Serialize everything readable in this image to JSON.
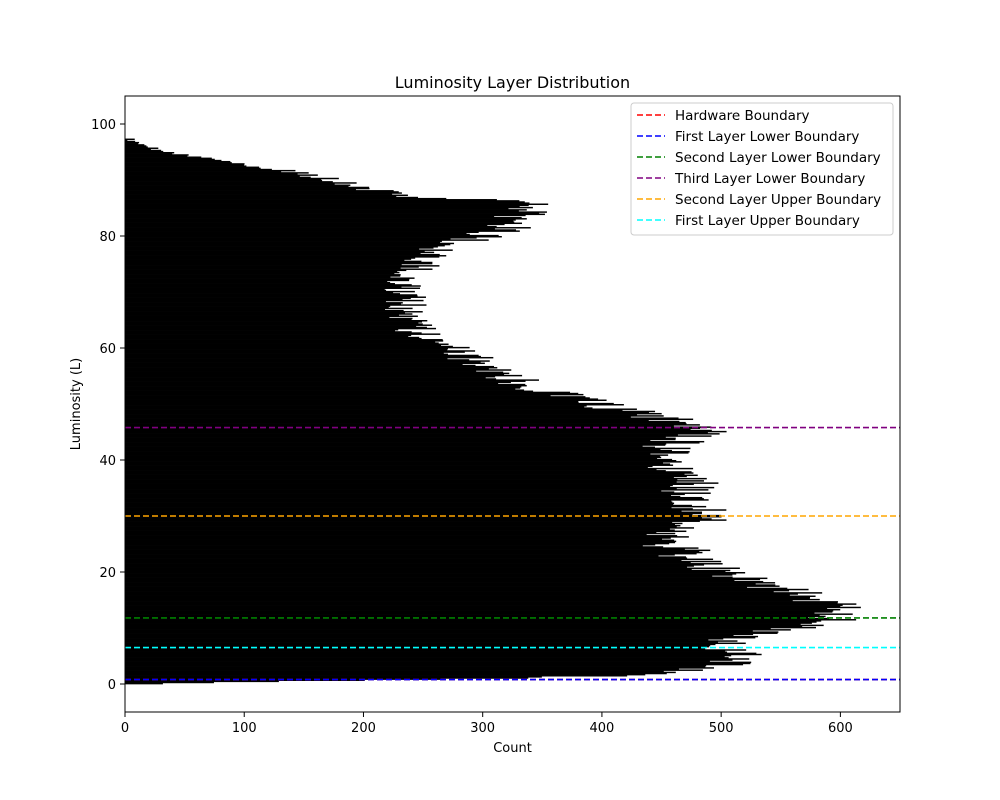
{
  "chart_data": {
    "type": "bar",
    "orientation": "horizontal",
    "title": "Luminosity Layer Distribution",
    "xlabel": "Count",
    "ylabel": "Luminosity (L)",
    "xlim": [
      0,
      650
    ],
    "ylim": [
      -5,
      105
    ],
    "xticks": [
      0,
      100,
      200,
      300,
      400,
      500,
      600
    ],
    "yticks": [
      0,
      20,
      40,
      60,
      80,
      100
    ],
    "grid": false,
    "legend_position": "top-right",
    "bar_color": "#000000",
    "bin_width": 0.2,
    "profile": {
      "L": [
        0,
        0.5,
        1,
        1.5,
        2,
        3,
        4,
        5,
        6,
        7,
        8,
        9,
        10,
        11,
        12,
        13,
        14,
        15,
        16,
        17,
        18,
        19,
        20,
        21,
        22,
        23,
        24,
        25,
        26,
        27,
        28,
        29,
        30,
        31,
        32,
        33,
        34,
        35,
        36,
        37,
        38,
        39,
        40,
        41,
        42,
        43,
        44,
        45,
        46,
        47,
        48,
        49,
        50,
        51,
        52,
        53,
        54,
        55,
        56,
        57,
        58,
        59,
        60,
        61,
        62,
        63,
        64,
        65,
        66,
        67,
        68,
        69,
        70,
        71,
        72,
        73,
        74,
        75,
        76,
        77,
        78,
        79,
        80,
        81,
        82,
        83,
        84,
        85,
        86,
        86.5,
        87,
        88,
        89,
        90,
        91,
        92,
        93,
        94,
        95,
        96,
        97,
        97.5,
        98
      ],
      "count": [
        30,
        150,
        330,
        420,
        450,
        500,
        510,
        515,
        505,
        495,
        505,
        530,
        570,
        585,
        600,
        605,
        600,
        580,
        565,
        550,
        530,
        510,
        500,
        490,
        480,
        470,
        465,
        455,
        450,
        460,
        470,
        480,
        485,
        485,
        480,
        475,
        470,
        470,
        475,
        470,
        465,
        460,
        455,
        450,
        455,
        460,
        470,
        480,
        470,
        460,
        440,
        410,
        395,
        380,
        360,
        340,
        330,
        320,
        310,
        300,
        290,
        280,
        270,
        260,
        255,
        245,
        240,
        235,
        235,
        235,
        235,
        235,
        235,
        235,
        235,
        240,
        245,
        250,
        255,
        260,
        270,
        285,
        300,
        315,
        325,
        330,
        335,
        340,
        340,
        280,
        230,
        210,
        190,
        175,
        150,
        120,
        90,
        60,
        35,
        15,
        6,
        2,
        0
      ]
    },
    "series": [
      {
        "name": "Hardware Boundary",
        "y": 0.8,
        "color": "#ff0000",
        "style": "dashed"
      },
      {
        "name": "First Layer Lower Boundary",
        "y": 0.8,
        "color": "#0000ff",
        "style": "dashed"
      },
      {
        "name": "Second Layer Lower Boundary",
        "y": 11.8,
        "color": "#008000",
        "style": "dashed"
      },
      {
        "name": "Third Layer Lower Boundary",
        "y": 45.8,
        "color": "#800080",
        "style": "dashed"
      },
      {
        "name": "Second Layer Upper Boundary",
        "y": 30.0,
        "color": "#ffa500",
        "style": "dashed"
      },
      {
        "name": "First Layer Upper Boundary",
        "y": 6.5,
        "color": "#00ffff",
        "style": "dashed"
      }
    ]
  }
}
